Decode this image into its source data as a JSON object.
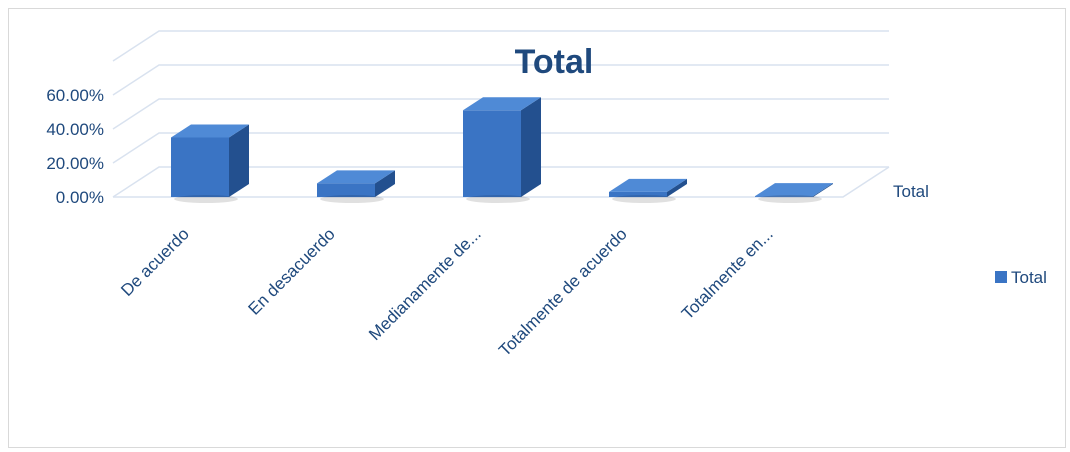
{
  "chart_data": {
    "type": "bar",
    "title": "Total",
    "categories": [
      "De acuerdo",
      "En desacuerdo",
      "Medianamente de...",
      "Totalmente de acuerdo",
      "Totalmente en..."
    ],
    "series": [
      {
        "name": "Total",
        "values": [
          35,
          8,
          51,
          3,
          0.5
        ]
      }
    ],
    "depth_axis_label": "Total",
    "yticks": [
      "0.00%",
      "20.00%",
      "40.00%",
      "60.00%"
    ],
    "ylim": [
      0,
      80
    ],
    "grid": true,
    "legend": "right",
    "colors": {
      "bar_front": "#3a74c4",
      "bar_top": "#4f8ad6",
      "bar_side": "#23508f",
      "grid": "#d9e2ef",
      "text": "#1f497d"
    }
  }
}
